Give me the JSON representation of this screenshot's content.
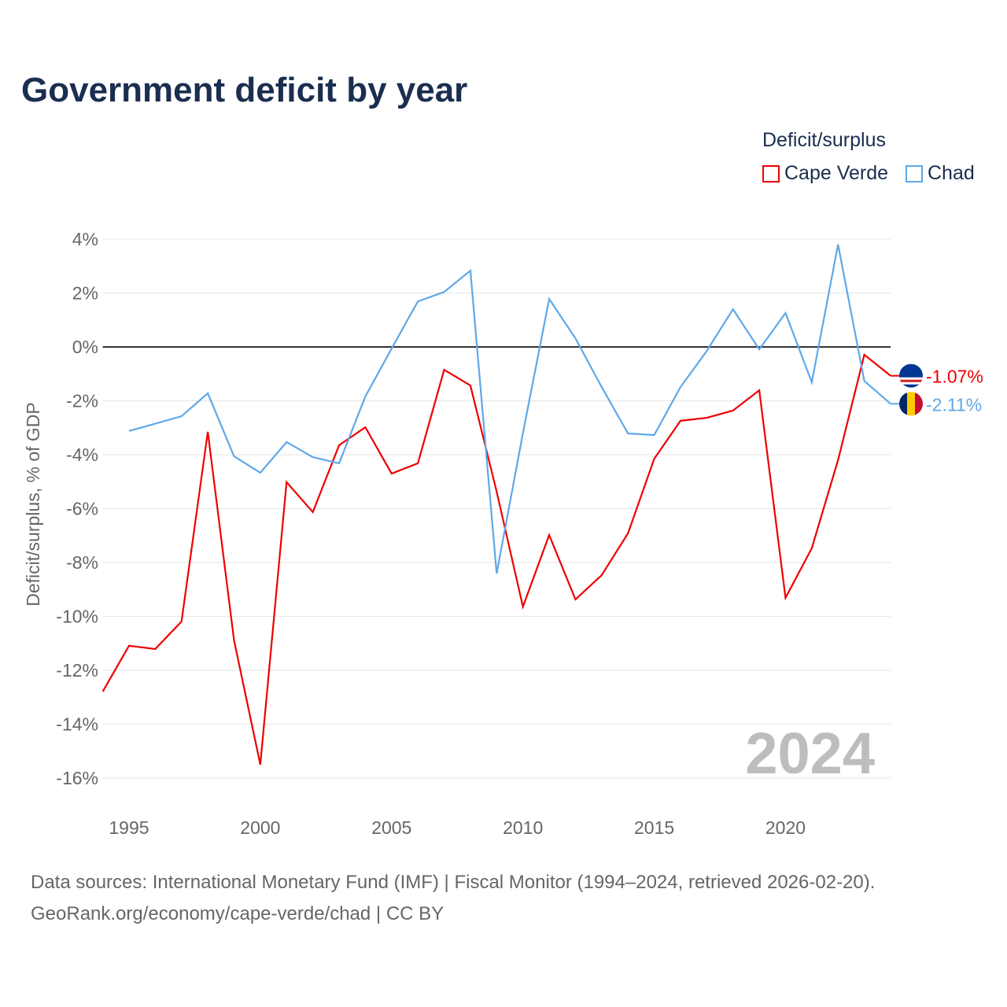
{
  "title": "Government deficit by year",
  "legend": {
    "title": "Deficit/surplus",
    "items": [
      {
        "label": "Cape Verde",
        "color": "#ee0000"
      },
      {
        "label": "Chad",
        "color": "#5ea8e8"
      }
    ]
  },
  "footer": {
    "line1": "Data sources: International Monetary Fund (IMF) | Fiscal Monitor (1994–2024, retrieved 2026-02-20).",
    "line2": "GeoRank.org/economy/cape-verde/chad | CC BY"
  },
  "chart_data": {
    "type": "line",
    "ylabel": "Deficit/surplus, % of GDP",
    "ylim": [
      -16,
      4
    ],
    "xlim": [
      1994,
      2024
    ],
    "yticks": [
      4,
      2,
      0,
      -2,
      -4,
      -6,
      -8,
      -10,
      -12,
      -14,
      -16
    ],
    "ytick_labels": [
      "4%",
      "2%",
      "0%",
      "-2%",
      "-4%",
      "-6%",
      "-8%",
      "-10%",
      "-12%",
      "-14%",
      "-16%"
    ],
    "xticks": [
      1995,
      2000,
      2005,
      2010,
      2015,
      2020
    ],
    "xtick_labels": [
      "1995",
      "2000",
      "2005",
      "2010",
      "2015",
      "2020"
    ],
    "year_label": "2024",
    "series": [
      {
        "name": "Cape Verde",
        "color": "#ee0000",
        "end_label": "-1.07%",
        "x": [
          1994,
          1995,
          1996,
          1997,
          1998,
          1999,
          2000,
          2001,
          2002,
          2003,
          2004,
          2005,
          2006,
          2007,
          2008,
          2009,
          2010,
          2011,
          2012,
          2013,
          2014,
          2015,
          2016,
          2017,
          2018,
          2019,
          2020,
          2021,
          2022,
          2023,
          2024
        ],
        "values": [
          -12.79,
          -11.09,
          -11.21,
          -10.19,
          -3.15,
          -10.89,
          -15.5,
          -5.02,
          -6.13,
          -3.65,
          -2.98,
          -4.7,
          -4.32,
          -0.85,
          -1.43,
          -5.37,
          -9.64,
          -6.98,
          -9.37,
          -8.47,
          -6.92,
          -4.15,
          -2.74,
          -2.63,
          -2.36,
          -1.61,
          -9.31,
          -7.47,
          -4.2,
          -0.29,
          -1.07
        ]
      },
      {
        "name": "Chad",
        "color": "#5ea8e8",
        "end_label": "-2.11%",
        "x": [
          1995,
          1996,
          1997,
          1998,
          1999,
          2000,
          2001,
          2002,
          2003,
          2004,
          2005,
          2006,
          2007,
          2008,
          2009,
          2010,
          2011,
          2012,
          2013,
          2014,
          2015,
          2016,
          2017,
          2018,
          2019,
          2020,
          2021,
          2022,
          2023,
          2024
        ],
        "values": [
          -3.12,
          -2.85,
          -2.57,
          -1.72,
          -4.06,
          -4.67,
          -3.53,
          -4.09,
          -4.32,
          -1.84,
          -0.06,
          1.69,
          2.04,
          2.83,
          -8.41,
          -3.2,
          1.78,
          0.32,
          -1.49,
          -3.21,
          -3.27,
          -1.49,
          -0.15,
          1.4,
          -0.09,
          1.26,
          -1.31,
          3.8,
          -1.26,
          -2.11
        ]
      }
    ]
  }
}
